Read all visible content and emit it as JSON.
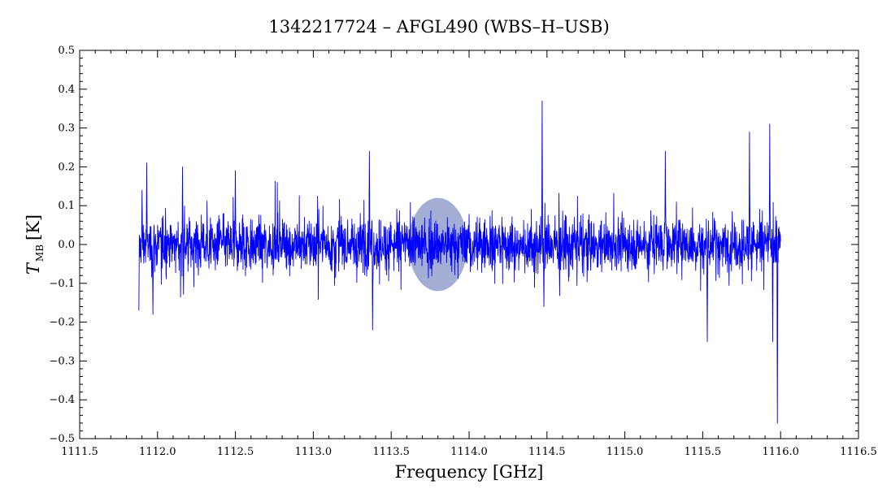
{
  "chart_data": {
    "type": "line",
    "title": "1342217724 – AFGL490 (WBS–H–USB)",
    "xlabel": "Frequency [GHz]",
    "ylabel": {
      "symbol": "T",
      "subscript": "MB",
      "unit": "[K]"
    },
    "xlim": [
      1111.5,
      1116.5
    ],
    "ylim": [
      -0.5,
      0.5
    ],
    "x_ticks": [
      "1111.5",
      "1112.0",
      "1112.5",
      "1113.0",
      "1113.5",
      "1114.0",
      "1114.5",
      "1115.0",
      "1115.5",
      "1116.0",
      "1116.5"
    ],
    "y_ticks": [
      "−0.5",
      "−0.4",
      "−0.3",
      "−0.2",
      "−0.1",
      "0.0",
      "0.1",
      "0.2",
      "0.3",
      "0.4",
      "0.5"
    ],
    "grid": false,
    "colors": {
      "line": "#0000ff",
      "marker": "#5a6bb3",
      "axis": "#000000"
    },
    "series": [
      {
        "x_range": [
          1111.88,
          1116.0
        ],
        "noise_rms_K": 0.055,
        "baseline_K": 0.0,
        "features": [
          {
            "x": 1111.88,
            "y": -0.17
          },
          {
            "x": 1111.9,
            "y": 0.14
          },
          {
            "x": 1111.93,
            "y": 0.21
          },
          {
            "x": 1111.97,
            "y": -0.18
          },
          {
            "x": 1112.16,
            "y": 0.2
          },
          {
            "x": 1112.5,
            "y": 0.19
          },
          {
            "x": 1113.36,
            "y": 0.24
          },
          {
            "x": 1113.38,
            "y": -0.22
          },
          {
            "x": 1114.47,
            "y": 0.37
          },
          {
            "x": 1114.48,
            "y": -0.16
          },
          {
            "x": 1115.26,
            "y": 0.24
          },
          {
            "x": 1115.53,
            "y": -0.25
          },
          {
            "x": 1115.8,
            "y": 0.29
          },
          {
            "x": 1115.93,
            "y": 0.31
          },
          {
            "x": 1115.95,
            "y": -0.25
          },
          {
            "x": 1115.98,
            "y": -0.46
          }
        ]
      }
    ],
    "annotations": [
      {
        "type": "ellipse-marker",
        "x": 1113.8,
        "y": 0.0,
        "rx_GHz": 0.19,
        "ry_K": 0.12
      }
    ]
  }
}
